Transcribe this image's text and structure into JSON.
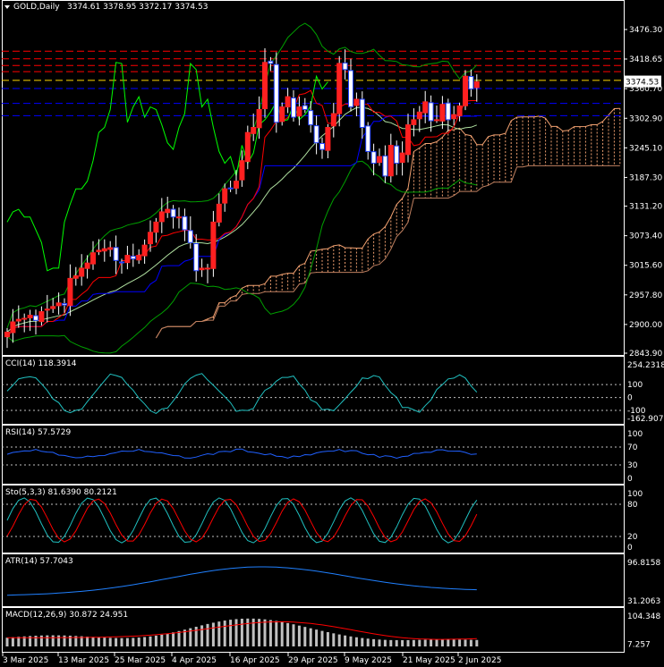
{
  "header": {
    "symbol_timeframe": "GOLD,Daily",
    "ohlc": "3374.61 3378.95 3372.17 3374.53"
  },
  "current_price_label": "3374.53",
  "colors": {
    "background": "#000000",
    "bull_candle": "#ff2020",
    "bear_candle": "#2040ff",
    "kijun": "#ff0000",
    "tenkan": "#0000ff",
    "bollinger": "#00a000",
    "chikou": "#00ff00",
    "cloud": "#f0a070",
    "cci_line": "#20c0c0",
    "rsi_line": "#2060ff",
    "stoch_main": "#20c0c0",
    "stoch_signal": "#ff0000",
    "atr_line": "#2080ff",
    "macd_signal": "#ff0000",
    "macd_hist": "#c0c0c0",
    "hline_red": "#ff0000",
    "hline_blue": "#0000ff",
    "hline_yellow": "#ffd700"
  },
  "chart_data": [
    {
      "type": "candlestick",
      "title": "GOLD,Daily",
      "ylim": [
        2843.9,
        3476.3
      ],
      "y_ticks": [
        "3476.30",
        "3418.65",
        "3360.70",
        "3302.90",
        "3245.10",
        "3187.30",
        "3131.20",
        "3073.40",
        "3015.60",
        "2957.80",
        "2900.00",
        "2843.90"
      ],
      "x_tick_labels": [
        "3 Mar 2025",
        "13 Mar 2025",
        "25 Mar 2025",
        "4 Apr 2025",
        "16 Apr 2025",
        "29 Apr 2025",
        "9 May 2025",
        "21 May 2025",
        "2 Jun 2025"
      ],
      "horizontal_levels": [
        {
          "value": 3434,
          "color": "red"
        },
        {
          "value": 3419,
          "color": "red"
        },
        {
          "value": 3406,
          "color": "red"
        },
        {
          "value": 3394,
          "color": "red"
        },
        {
          "value": 3377,
          "color": "yellow"
        },
        {
          "value": 3361,
          "color": "blue"
        },
        {
          "value": 3332,
          "color": "blue"
        },
        {
          "value": 3308,
          "color": "blue"
        }
      ],
      "closes": [
        2885,
        2905,
        2910,
        2912,
        2918,
        2908,
        2925,
        2930,
        2935,
        2942,
        2938,
        2990,
        2995,
        3010,
        3020,
        3040,
        3045,
        3048,
        3050,
        3025,
        3022,
        3035,
        3028,
        3035,
        3055,
        3080,
        3100,
        3120,
        3125,
        3110,
        3110,
        3085,
        3060,
        3005,
        3010,
        3010,
        3100,
        3135,
        3165,
        3165,
        3180,
        3220,
        3275,
        3285,
        3320,
        3412,
        3410,
        3295,
        3325,
        3345,
        3305,
        3325,
        3320,
        3290,
        3255,
        3242,
        3285,
        3312,
        3410,
        3398,
        3325,
        3340,
        3285,
        3238,
        3215,
        3228,
        3190,
        3250,
        3215,
        3235,
        3290,
        3300,
        3315,
        3335,
        3298,
        3300,
        3330,
        3300,
        3310,
        3327,
        3385,
        3360,
        3374
      ],
      "series": [
        {
          "name": "CCI(14)",
          "value": "118.3914",
          "ylim": [
            -162.9072,
            254.2318
          ],
          "levels": [
            "254.2318",
            "100",
            "0",
            "-100",
            "-162.9072"
          ]
        },
        {
          "name": "RSI(14)",
          "value": "57.5729",
          "ylim": [
            0,
            100
          ],
          "levels": [
            "100",
            "70",
            "30",
            "0"
          ]
        },
        {
          "name": "Sto(5,3,3)",
          "value": "81.6390 80.2121",
          "ylim": [
            0,
            100
          ],
          "levels": [
            "100",
            "80",
            "20",
            "0"
          ]
        },
        {
          "name": "ATR(14)",
          "value": "57.7043",
          "ylim": [
            31.2063,
            96.8158
          ],
          "levels": [
            "96.8158",
            "31.2063"
          ]
        },
        {
          "name": "MACD(12,26,9)",
          "value": "30.872 24.951",
          "ylim": [
            0,
            104.348
          ],
          "levels": [
            "104.348",
            "7.257"
          ]
        }
      ]
    }
  ],
  "panels": {
    "cci": {
      "label": "CCI(14) 118.3914",
      "ticks": [
        "254.2318",
        "100",
        "0",
        "-100",
        "-162.9072"
      ]
    },
    "rsi": {
      "label": "RSI(14) 57.5729",
      "ticks": [
        "100",
        "70",
        "30",
        "0"
      ]
    },
    "sto": {
      "label": "Sto(5,3,3) 81.6390 80.2121",
      "ticks": [
        "100",
        "80",
        "20",
        "0"
      ]
    },
    "atr": {
      "label": "ATR(14) 57.7043",
      "ticks": [
        "96.8158",
        "31.2063"
      ]
    },
    "macd": {
      "label": "MACD(12,26,9) 30.872 24.951",
      "ticks": [
        "104.348",
        "7.257"
      ]
    }
  }
}
